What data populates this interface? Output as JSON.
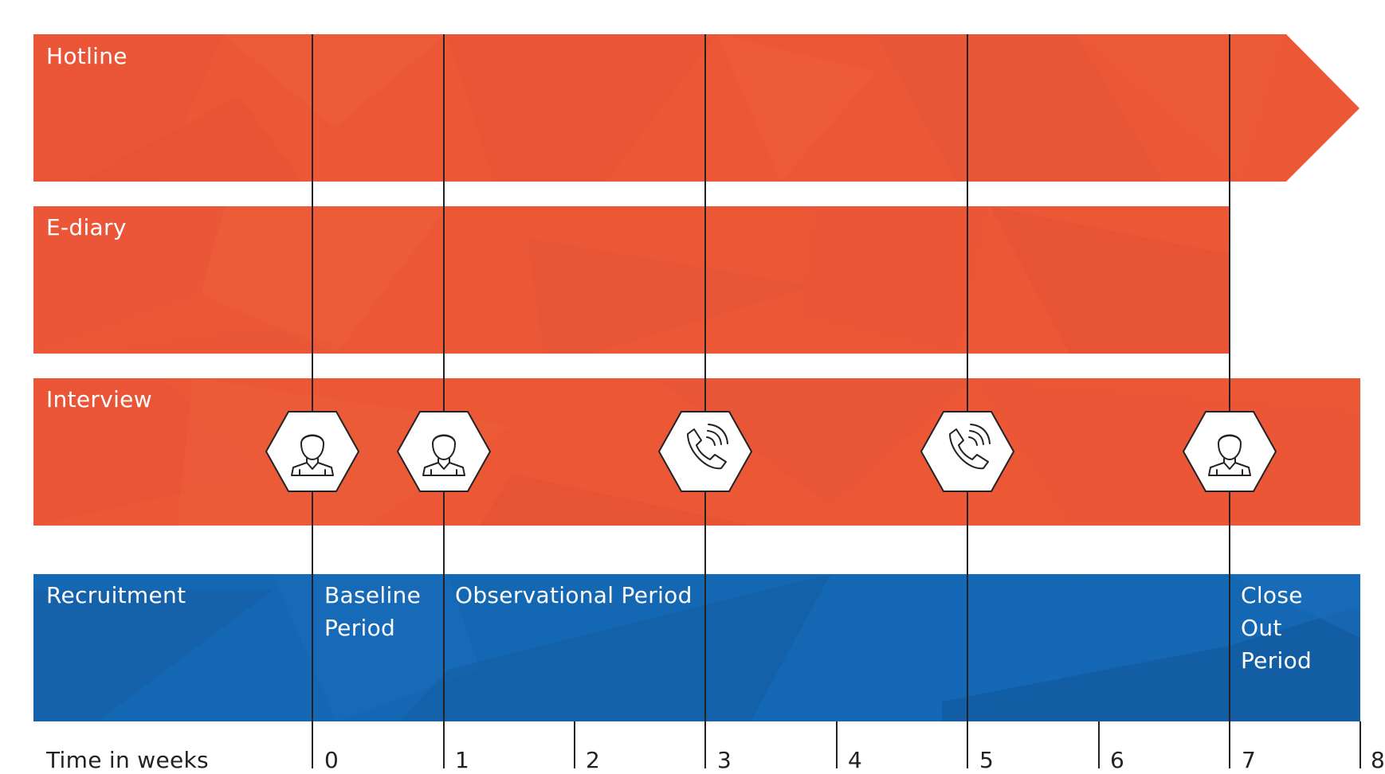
{
  "rows": {
    "hotline": "Hotline",
    "ediary": "E-diary",
    "interview": "Interview"
  },
  "phases": {
    "recruitment": "Recruitment",
    "baseline": "Baseline Period",
    "observational": "Observational Period",
    "closeout": "Close Out Period"
  },
  "axis": {
    "label": "Time in weeks",
    "ticks": [
      "0",
      "1",
      "2",
      "3",
      "4",
      "5",
      "6",
      "7",
      "8"
    ]
  },
  "interview_events": [
    {
      "week": 0,
      "kind": "in-person",
      "icon": "person-icon"
    },
    {
      "week": 1,
      "kind": "in-person",
      "icon": "person-icon"
    },
    {
      "week": 3,
      "kind": "phone",
      "icon": "phone-call-icon"
    },
    {
      "week": 5,
      "kind": "phone",
      "icon": "phone-call-icon"
    },
    {
      "week": 7,
      "kind": "in-person",
      "icon": "person-icon"
    }
  ],
  "colors": {
    "activity_band": "#ec5836",
    "phase_band": "#1467b2",
    "gridline": "#222222"
  }
}
